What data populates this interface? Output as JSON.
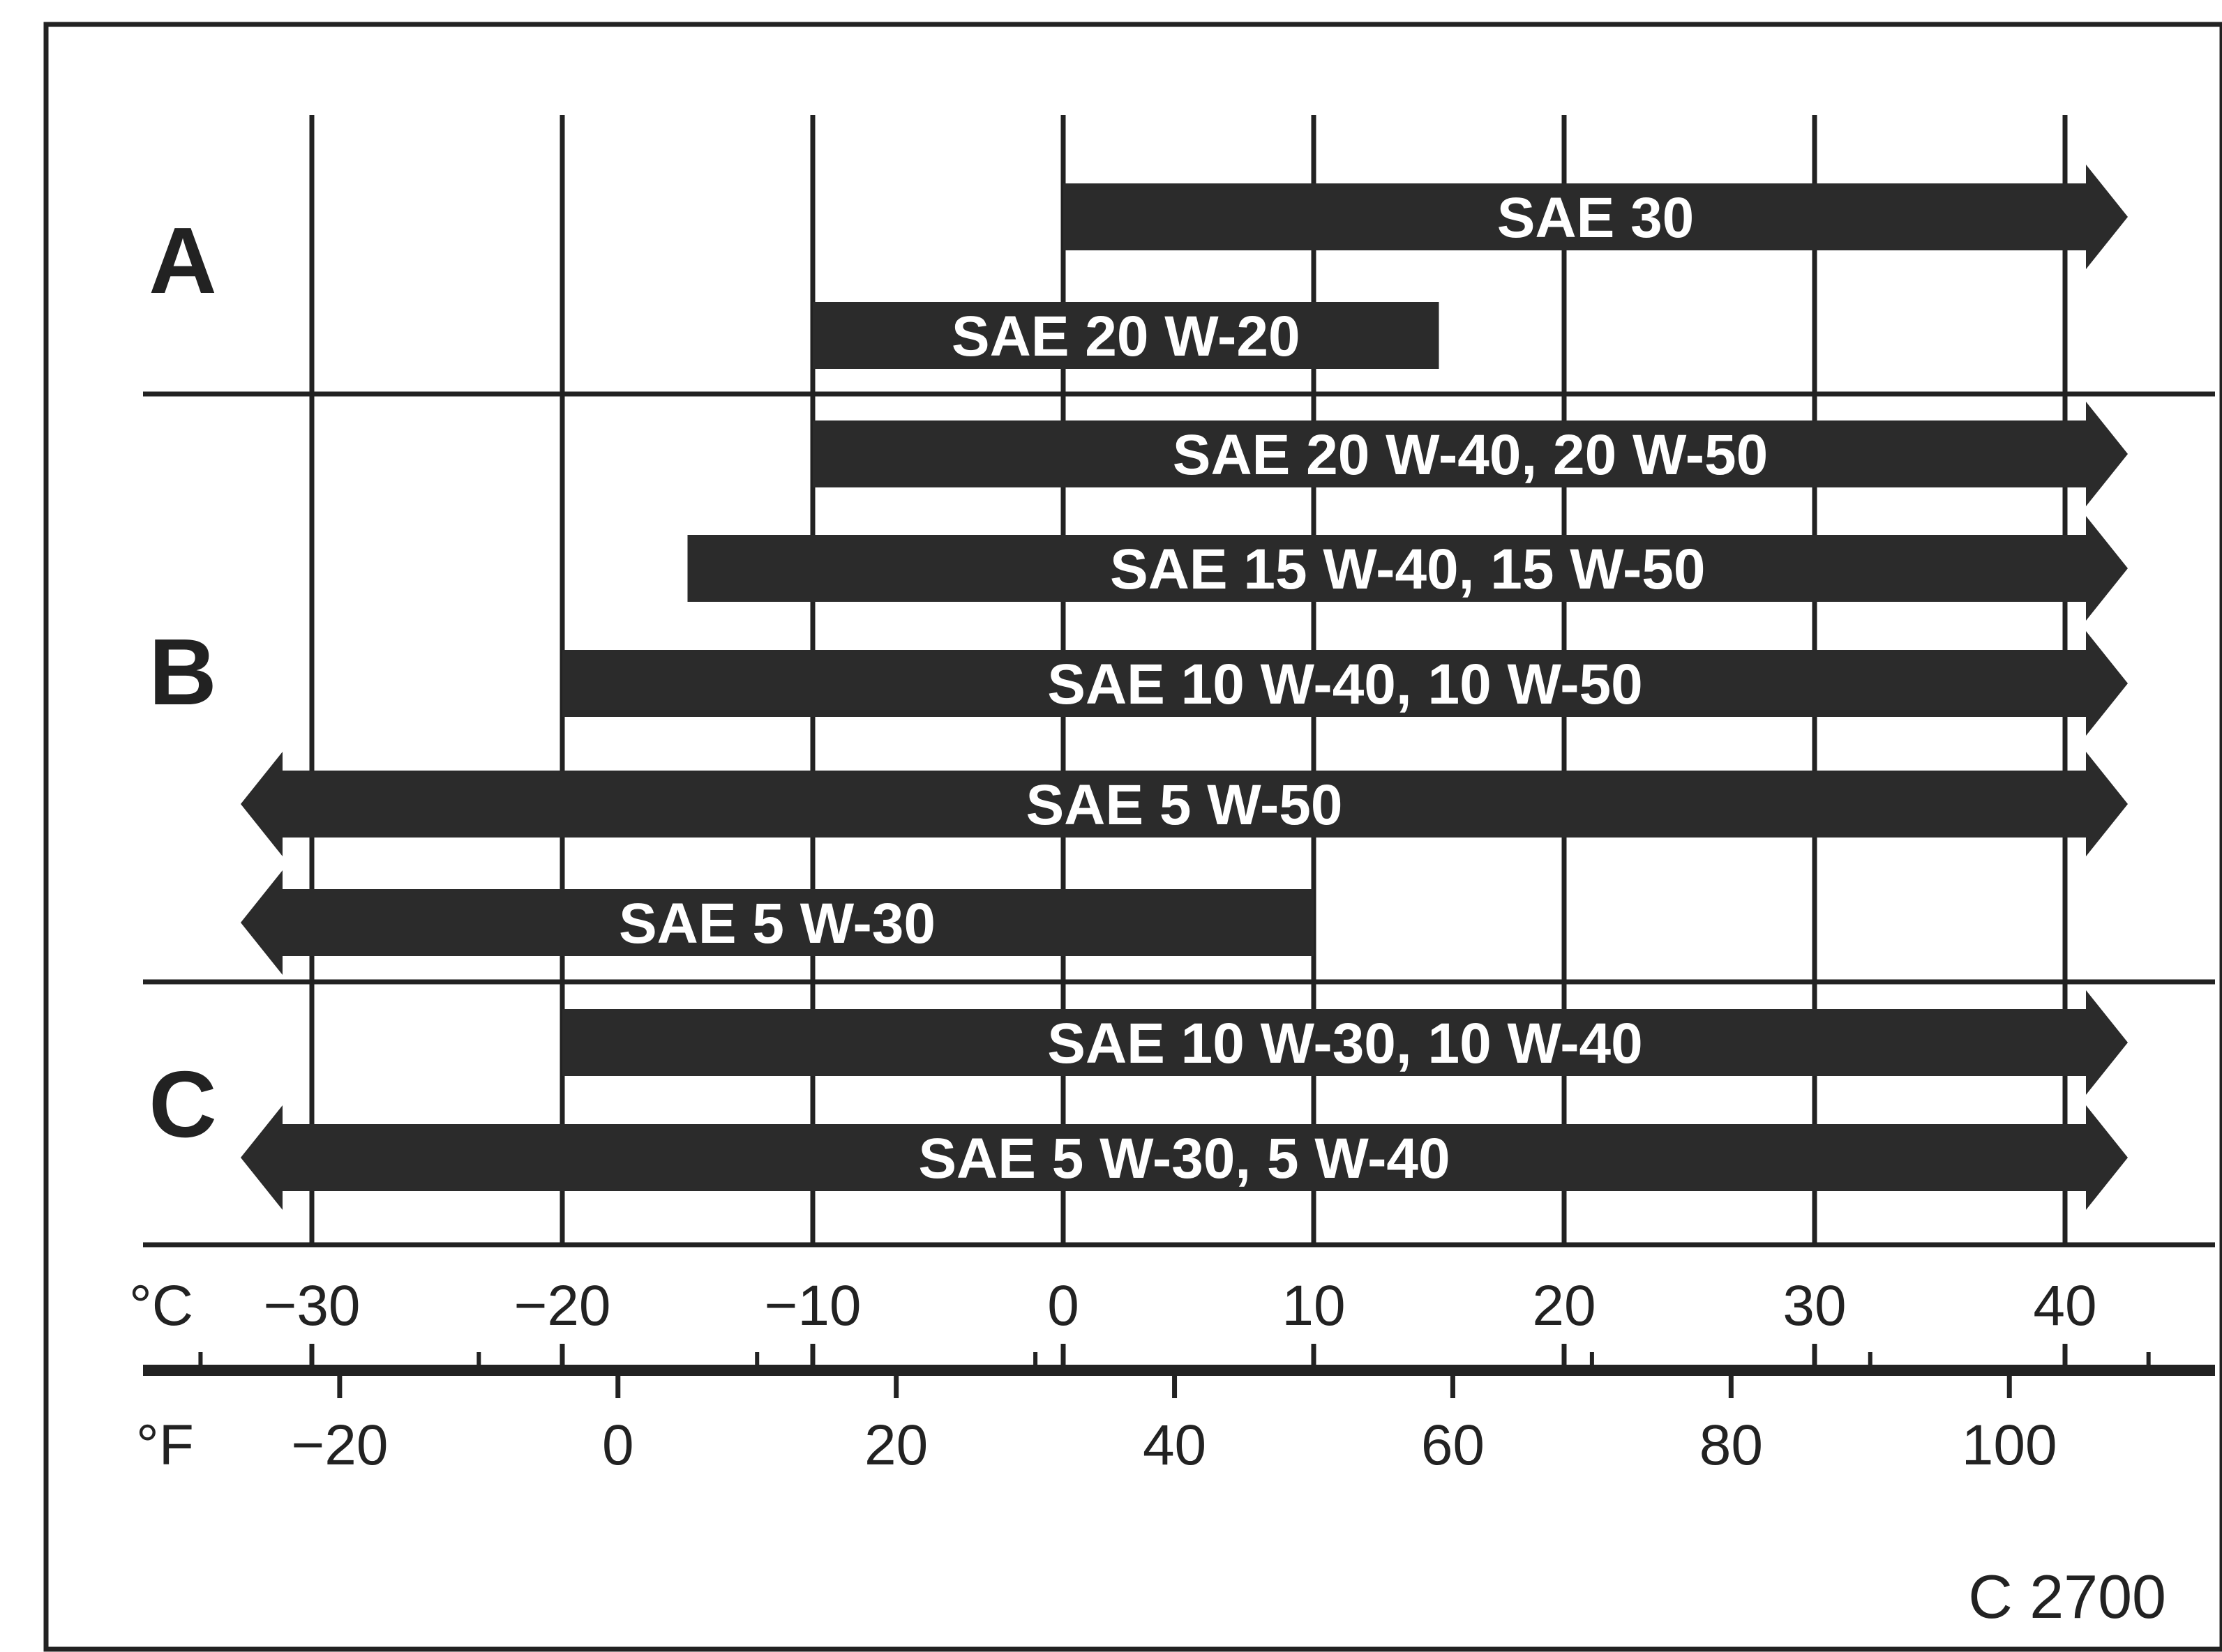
{
  "chart_data": {
    "type": "range-bar",
    "x_axis_primary": {
      "unit": "°C",
      "ticks": [
        -30,
        -20,
        -10,
        0,
        10,
        20,
        30,
        40
      ]
    },
    "x_axis_secondary": {
      "unit": "°F",
      "ticks": [
        -20,
        0,
        20,
        40,
        60,
        80,
        100
      ]
    },
    "groups": [
      {
        "label": "A",
        "bars": [
          {
            "label": "SAE 30",
            "from_c": 0,
            "to_c": 40,
            "extends_below": false,
            "extends_above": true
          },
          {
            "label": "SAE 20 W-20",
            "from_c": -10,
            "to_c": 15,
            "extends_below": false,
            "extends_above": false
          }
        ]
      },
      {
        "label": "B",
        "bars": [
          {
            "label": "SAE 20 W-40, 20 W-50",
            "from_c": -10,
            "to_c": 40,
            "extends_below": false,
            "extends_above": true
          },
          {
            "label": "SAE 15 W-40, 15 W-50",
            "from_c": -15,
            "to_c": 40,
            "extends_below": false,
            "extends_above": true
          },
          {
            "label": "SAE 10 W-40, 10 W-50",
            "from_c": -20,
            "to_c": 40,
            "extends_below": false,
            "extends_above": true
          },
          {
            "label": "SAE 5 W-50",
            "from_c": -30,
            "to_c": 40,
            "extends_below": true,
            "extends_above": true
          },
          {
            "label": "SAE 5 W-30",
            "from_c": -30,
            "to_c": 10,
            "extends_below": true,
            "extends_above": false
          }
        ]
      },
      {
        "label": "C",
        "bars": [
          {
            "label": "SAE 10 W-30, 10 W-40",
            "from_c": -20,
            "to_c": 40,
            "extends_below": false,
            "extends_above": true
          },
          {
            "label": "SAE 5 W-30, 5 W-40",
            "from_c": -30,
            "to_c": 40,
            "extends_below": true,
            "extends_above": true
          }
        ]
      }
    ],
    "figure_id": "C 2700"
  },
  "colors": {
    "bar": "#2b2b2b",
    "ink": "#222222",
    "paper": "#ffffff"
  }
}
